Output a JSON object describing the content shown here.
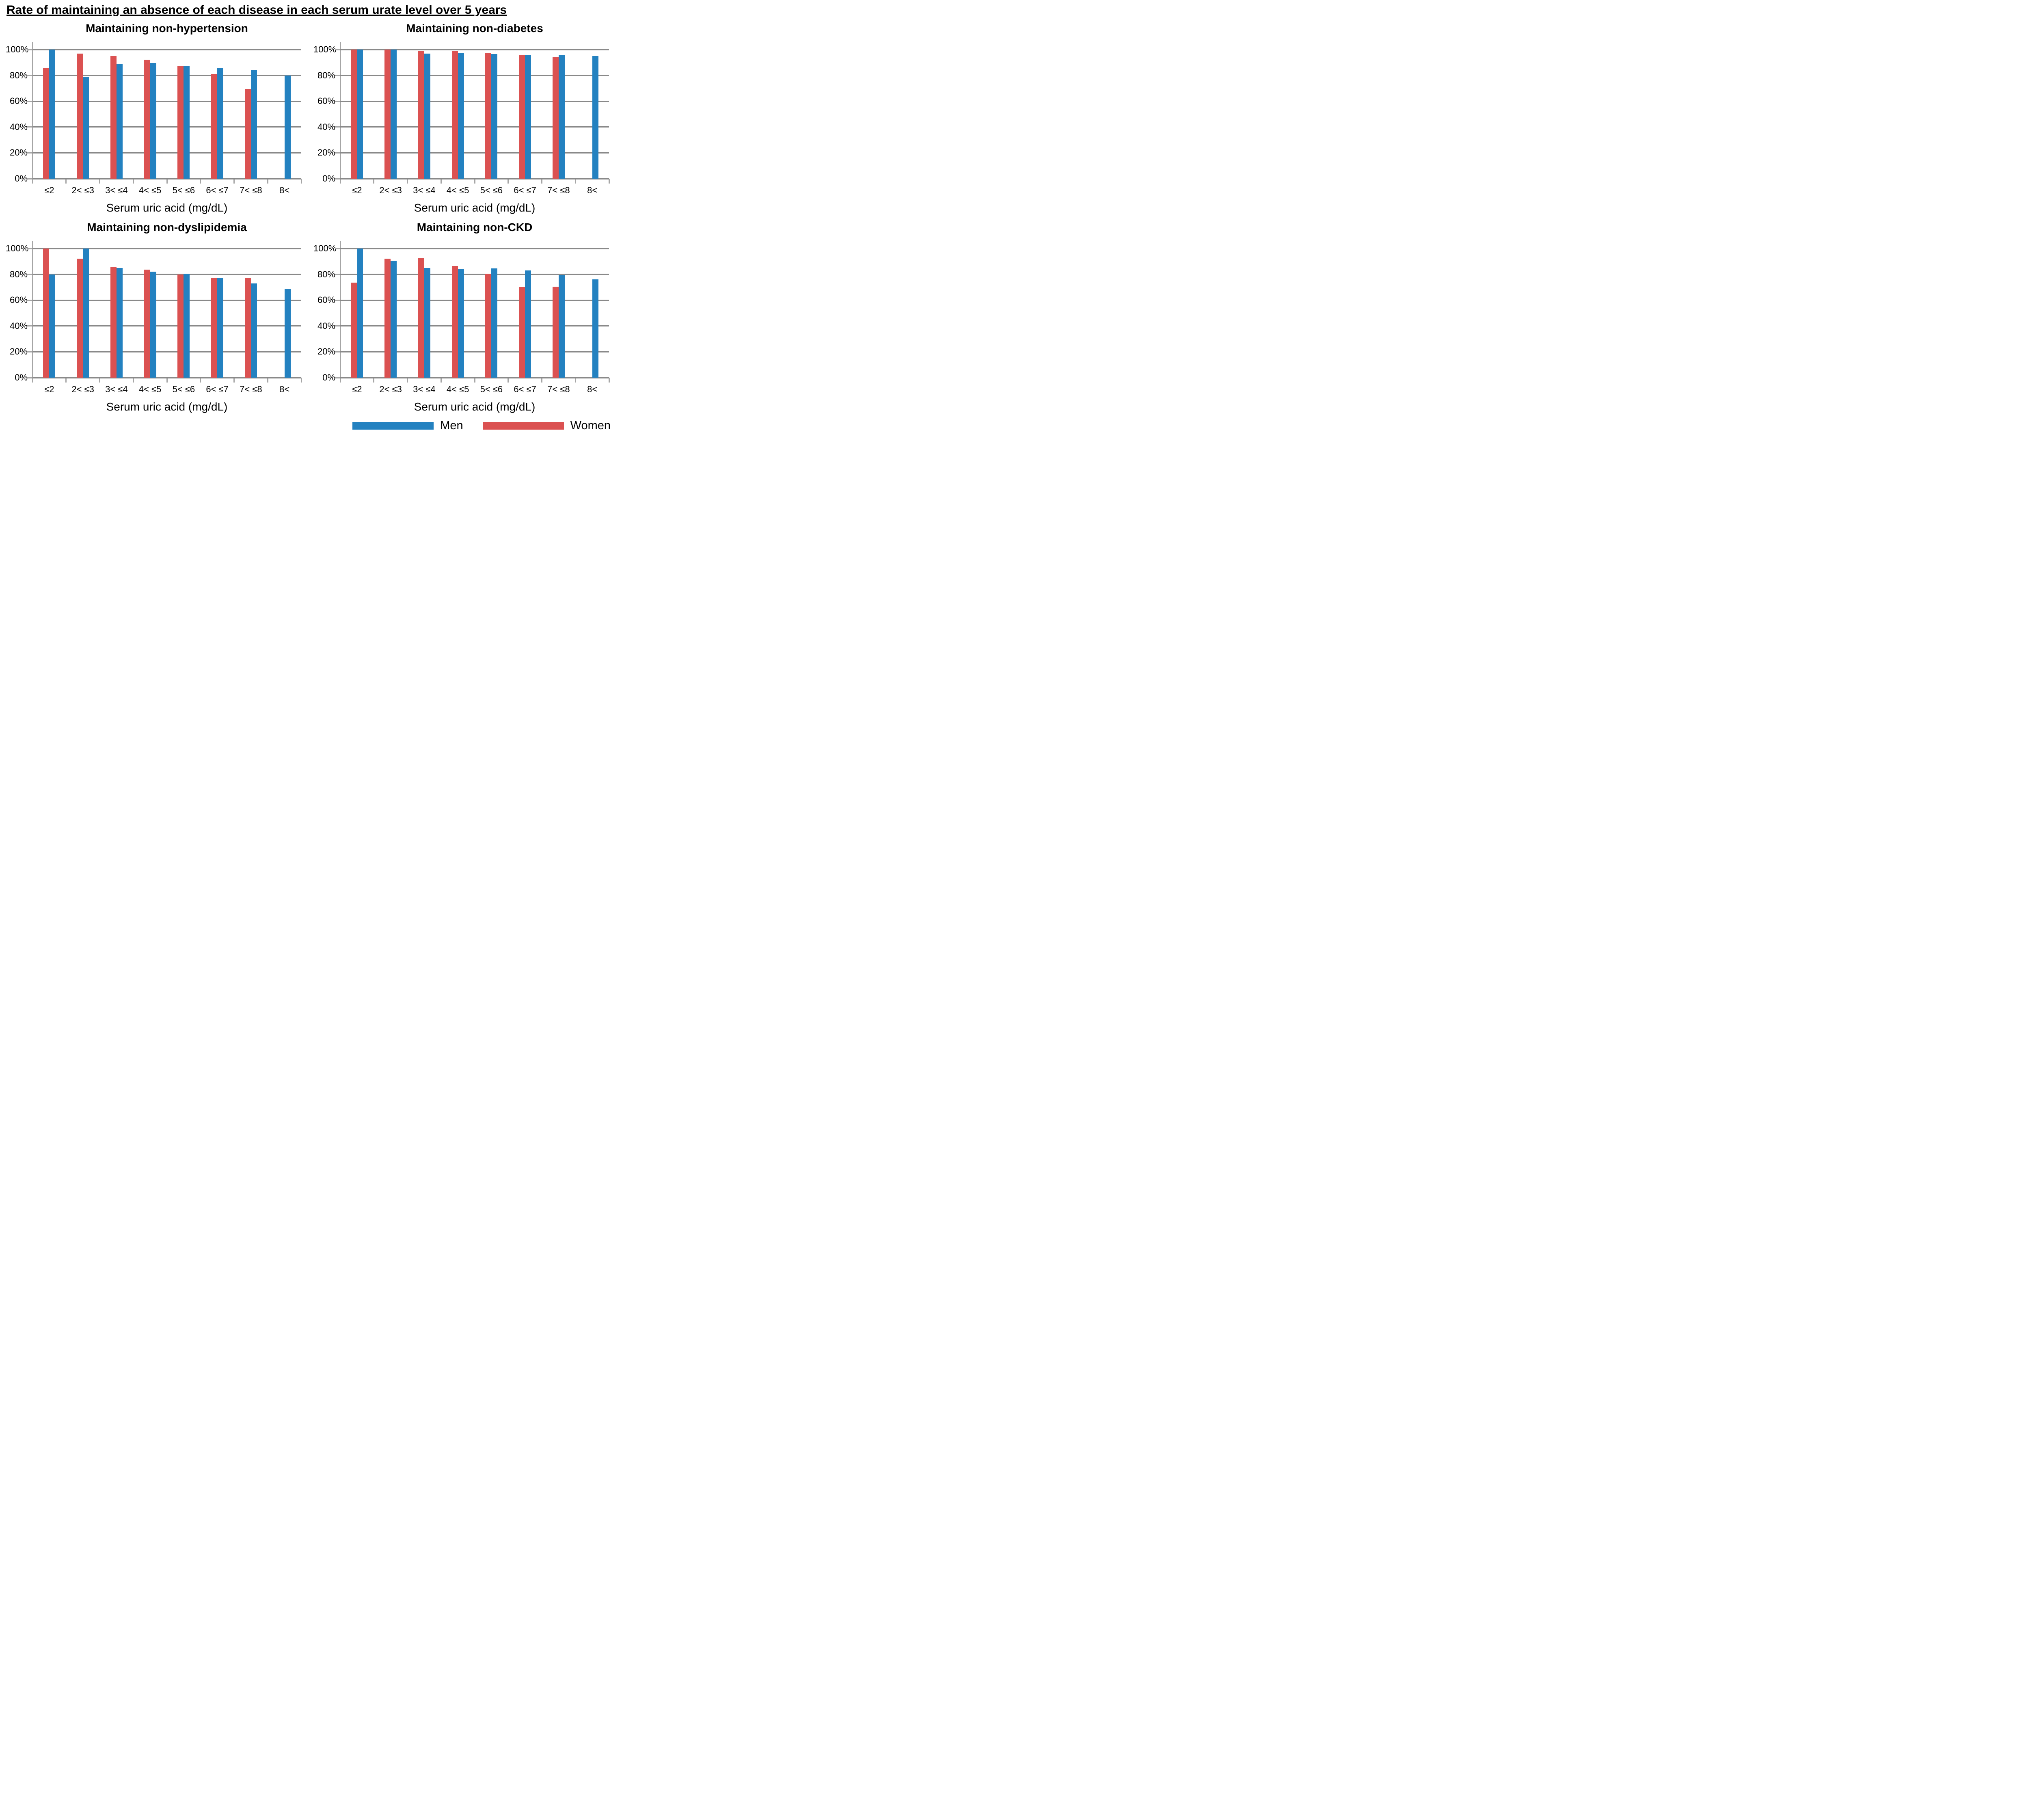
{
  "page_title": "Rate of maintaining an absence of each disease in each serum urate level over 5 years",
  "legend": {
    "items": [
      {
        "label": "Men",
        "color": "#2381C0"
      },
      {
        "label": "Women",
        "color": "#DB5151"
      }
    ],
    "position": "bottom-right"
  },
  "chart_data": [
    {
      "type": "bar",
      "title": "Maintaining non-hypertension",
      "xlabel": "Serum uric acid (mg/dL)",
      "ylim": [
        0,
        100
      ],
      "yticks": [
        "0%",
        "20%",
        "40%",
        "60%",
        "80%",
        "100%"
      ],
      "grid": true,
      "categories": [
        "≤2",
        "2< ≤3",
        "3< ≤4",
        "4< ≤5",
        "5< ≤6",
        "6< ≤7",
        "7< ≤8",
        "8<"
      ],
      "series": [
        {
          "name": "Women",
          "color": "#DB5151",
          "values": [
            86,
            97,
            95,
            92,
            87,
            81,
            69.5,
            null
          ]
        },
        {
          "name": "Men",
          "color": "#2381C0",
          "values": [
            100,
            78.5,
            89,
            89.5,
            87.5,
            86,
            84,
            80
          ]
        }
      ]
    },
    {
      "type": "bar",
      "title": "Maintaining non-diabetes",
      "xlabel": "Serum uric acid (mg/dL)",
      "ylim": [
        0,
        100
      ],
      "yticks": [
        "0%",
        "20%",
        "40%",
        "60%",
        "80%",
        "100%"
      ],
      "grid": true,
      "categories": [
        "≤2",
        "2< ≤3",
        "3< ≤4",
        "4< ≤5",
        "5< ≤6",
        "6< ≤7",
        "7< ≤8",
        "8<"
      ],
      "series": [
        {
          "name": "Women",
          "color": "#DB5151",
          "values": [
            100,
            100,
            99,
            99,
            97.5,
            96,
            94,
            null
          ]
        },
        {
          "name": "Men",
          "color": "#2381C0",
          "values": [
            100,
            100,
            97,
            97.5,
            96.5,
            96,
            96,
            95
          ]
        }
      ]
    },
    {
      "type": "bar",
      "title": "Maintaining non-dyslipidemia",
      "xlabel": "Serum uric acid (mg/dL)",
      "ylim": [
        0,
        100
      ],
      "yticks": [
        "0%",
        "20%",
        "40%",
        "60%",
        "80%",
        "100%"
      ],
      "grid": true,
      "categories": [
        "≤2",
        "2< ≤3",
        "3< ≤4",
        "4< ≤5",
        "5< ≤6",
        "6< ≤7",
        "7< ≤8",
        "8<"
      ],
      "series": [
        {
          "name": "Women",
          "color": "#DB5151",
          "values": [
            100,
            92,
            86,
            83.5,
            80,
            77.5,
            77.5,
            null
          ]
        },
        {
          "name": "Men",
          "color": "#2381C0",
          "values": [
            80,
            100,
            85,
            82,
            80.5,
            77.5,
            73,
            69
          ]
        }
      ]
    },
    {
      "type": "bar",
      "title": "Maintaining non-CKD",
      "xlabel": "Serum uric acid (mg/dL)",
      "ylim": [
        0,
        100
      ],
      "yticks": [
        "0%",
        "20%",
        "40%",
        "60%",
        "80%",
        "100%"
      ],
      "grid": true,
      "categories": [
        "≤2",
        "2< ≤3",
        "3< ≤4",
        "4< ≤5",
        "5< ≤6",
        "6< ≤7",
        "7< ≤8",
        "8<"
      ],
      "series": [
        {
          "name": "Women",
          "color": "#DB5151",
          "values": [
            73.5,
            92,
            92.5,
            86.5,
            80.5,
            70,
            70.5,
            null
          ]
        },
        {
          "name": "Men",
          "color": "#2381C0",
          "values": [
            100,
            90.5,
            85,
            84,
            84.5,
            83,
            79.5,
            76
          ]
        }
      ]
    }
  ]
}
